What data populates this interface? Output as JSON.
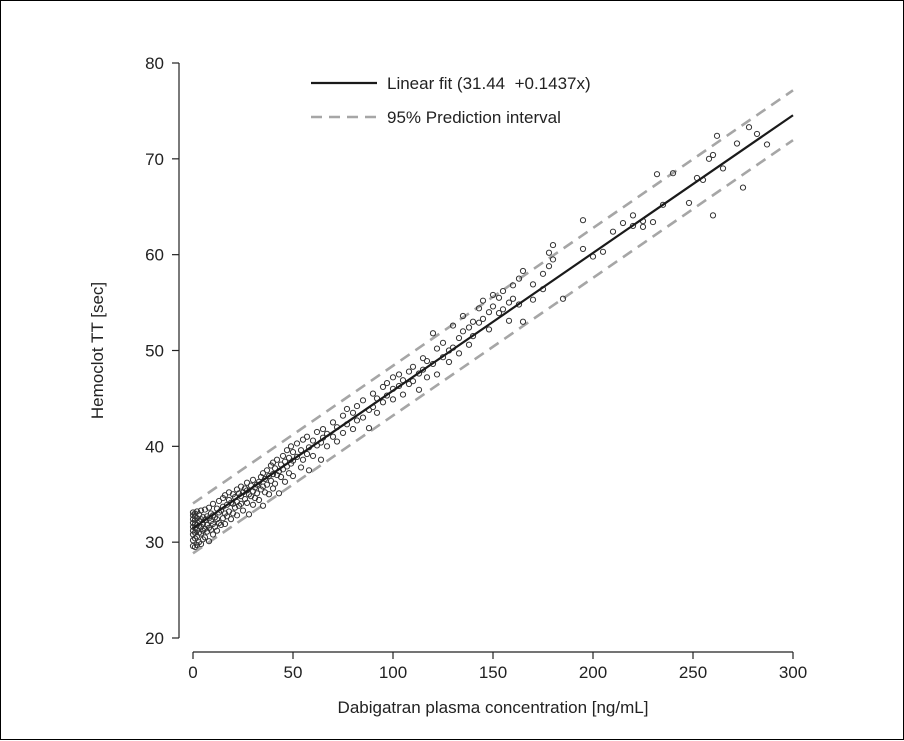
{
  "chart_data": {
    "type": "scatter",
    "xlabel": "Dabigatran plasma concentration [ng/mL]",
    "ylabel": "Hemoclot TT [sec]",
    "xlim": [
      0,
      300
    ],
    "ylim": [
      20,
      80
    ],
    "xticks": [
      0,
      50,
      100,
      150,
      200,
      250,
      300
    ],
    "yticks": [
      20,
      30,
      40,
      50,
      60,
      70,
      80
    ],
    "grid": false,
    "legend_position": "top-center",
    "legend": [
      {
        "label": "Linear fit (31.44  +0.1437x)",
        "style": "solid",
        "color": "#1a1a1a"
      },
      {
        "label": "95% Prediction interval",
        "style": "dashed",
        "color": "#a6a6a6"
      }
    ],
    "fit": {
      "intercept": 31.44,
      "slope": 0.1437
    },
    "prediction_interval_halfwidth": 2.6,
    "series": [
      {
        "marker": "open-circle",
        "color": "#333333",
        "points": [
          [
            0,
            29.6
          ],
          [
            0,
            30.2
          ],
          [
            0,
            30.8
          ],
          [
            0,
            31.2
          ],
          [
            0,
            31.6
          ],
          [
            0,
            32.0
          ],
          [
            0,
            32.4
          ],
          [
            0,
            32.8
          ],
          [
            0,
            33.1
          ],
          [
            1,
            29.5
          ],
          [
            1,
            30.4
          ],
          [
            1,
            31.0
          ],
          [
            1,
            31.5
          ],
          [
            1,
            31.9
          ],
          [
            1,
            32.3
          ],
          [
            1,
            32.7
          ],
          [
            1,
            33.0
          ],
          [
            2,
            29.7
          ],
          [
            2,
            30.6
          ],
          [
            2,
            31.3
          ],
          [
            2,
            31.8
          ],
          [
            2,
            32.5
          ],
          [
            2,
            33.2
          ],
          [
            3,
            30.0
          ],
          [
            3,
            31.0
          ],
          [
            3,
            31.7
          ],
          [
            3,
            32.2
          ],
          [
            3,
            32.9
          ],
          [
            4,
            29.8
          ],
          [
            4,
            30.9
          ],
          [
            4,
            31.6
          ],
          [
            4,
            32.4
          ],
          [
            4,
            33.3
          ],
          [
            5,
            30.3
          ],
          [
            5,
            31.2
          ],
          [
            5,
            31.9
          ],
          [
            5,
            32.6
          ],
          [
            6,
            30.5
          ],
          [
            6,
            31.4
          ],
          [
            6,
            32.3
          ],
          [
            6,
            33.4
          ],
          [
            7,
            31.1
          ],
          [
            7,
            31.8
          ],
          [
            7,
            32.7
          ],
          [
            8,
            30.1
          ],
          [
            8,
            31.5
          ],
          [
            8,
            32.5
          ],
          [
            8,
            33.6
          ],
          [
            9,
            31.3
          ],
          [
            9,
            32.2
          ],
          [
            9,
            33.0
          ],
          [
            10,
            30.8
          ],
          [
            10,
            31.9
          ],
          [
            10,
            32.8
          ],
          [
            10,
            34.0
          ],
          [
            11,
            31.6
          ],
          [
            11,
            32.6
          ],
          [
            12,
            31.2
          ],
          [
            12,
            32.4
          ],
          [
            12,
            33.5
          ],
          [
            13,
            32.0
          ],
          [
            13,
            33.1
          ],
          [
            13,
            34.3
          ],
          [
            14,
            31.8
          ],
          [
            14,
            33.3
          ],
          [
            15,
            32.5
          ],
          [
            15,
            33.7
          ],
          [
            15,
            34.6
          ],
          [
            16,
            31.9
          ],
          [
            16,
            33.0
          ],
          [
            16,
            34.9
          ],
          [
            17,
            32.7
          ],
          [
            17,
            33.9
          ],
          [
            18,
            33.2
          ],
          [
            18,
            34.4
          ],
          [
            18,
            35.2
          ],
          [
            19,
            32.4
          ],
          [
            19,
            34.1
          ],
          [
            20,
            33.0
          ],
          [
            20,
            34.0
          ],
          [
            20,
            35.0
          ],
          [
            21,
            33.6
          ],
          [
            21,
            34.7
          ],
          [
            22,
            32.8
          ],
          [
            22,
            34.2
          ],
          [
            22,
            35.5
          ],
          [
            23,
            33.8
          ],
          [
            23,
            35.1
          ],
          [
            24,
            34.0
          ],
          [
            24,
            34.8
          ],
          [
            24,
            35.8
          ],
          [
            25,
            33.3
          ],
          [
            25,
            35.2
          ],
          [
            26,
            34.5
          ],
          [
            26,
            35.6
          ],
          [
            27,
            34.1
          ],
          [
            27,
            35.4
          ],
          [
            27,
            36.2
          ],
          [
            28,
            32.9
          ],
          [
            28,
            35.0
          ],
          [
            29,
            34.8
          ],
          [
            29,
            35.9
          ],
          [
            30,
            33.9
          ],
          [
            30,
            35.3
          ],
          [
            30,
            36.5
          ],
          [
            31,
            34.6
          ],
          [
            31,
            35.7
          ],
          [
            32,
            35.1
          ],
          [
            32,
            36.0
          ],
          [
            33,
            34.4
          ],
          [
            33,
            36.3
          ],
          [
            34,
            35.5
          ],
          [
            34,
            36.8
          ],
          [
            35,
            33.8
          ],
          [
            35,
            35.8
          ],
          [
            35,
            37.2
          ],
          [
            36,
            35.2
          ],
          [
            36,
            36.6
          ],
          [
            37,
            36.0
          ],
          [
            37,
            37.5
          ],
          [
            38,
            35.0
          ],
          [
            38,
            36.9
          ],
          [
            39,
            36.4
          ],
          [
            39,
            38.0
          ],
          [
            40,
            35.6
          ],
          [
            40,
            37.1
          ],
          [
            40,
            38.3
          ],
          [
            41,
            36.1
          ],
          [
            41,
            37.7
          ],
          [
            42,
            37.0
          ],
          [
            42,
            38.6
          ],
          [
            43,
            35.1
          ],
          [
            43,
            37.4
          ],
          [
            44,
            36.8
          ],
          [
            44,
            38.1
          ],
          [
            45,
            37.6
          ],
          [
            45,
            39.0
          ],
          [
            46,
            36.3
          ],
          [
            46,
            38.4
          ],
          [
            47,
            37.9
          ],
          [
            47,
            39.6
          ],
          [
            48,
            37.2
          ],
          [
            48,
            38.8
          ],
          [
            49,
            38.2
          ],
          [
            49,
            40.0
          ],
          [
            50,
            36.9
          ],
          [
            50,
            38.5
          ],
          [
            50,
            39.4
          ],
          [
            52,
            38.9
          ],
          [
            52,
            40.3
          ],
          [
            54,
            37.8
          ],
          [
            54,
            39.6
          ],
          [
            55,
            38.6
          ],
          [
            55,
            40.7
          ],
          [
            57,
            39.2
          ],
          [
            57,
            41.0
          ],
          [
            58,
            37.5
          ],
          [
            58,
            39.9
          ],
          [
            60,
            39.0
          ],
          [
            60,
            40.6
          ],
          [
            62,
            40.1
          ],
          [
            62,
            41.5
          ],
          [
            64,
            38.6
          ],
          [
            64,
            40.4
          ],
          [
            65,
            40.9
          ],
          [
            65,
            41.8
          ],
          [
            67,
            40.0
          ],
          [
            67,
            41.3
          ],
          [
            70,
            41.0
          ],
          [
            70,
            42.5
          ],
          [
            72,
            40.5
          ],
          [
            72,
            42.0
          ],
          [
            75,
            41.4
          ],
          [
            75,
            43.2
          ],
          [
            77,
            42.3
          ],
          [
            77,
            43.9
          ],
          [
            80,
            41.8
          ],
          [
            80,
            43.5
          ],
          [
            82,
            42.7
          ],
          [
            82,
            44.2
          ],
          [
            85,
            43.0
          ],
          [
            85,
            44.8
          ],
          [
            88,
            41.9
          ],
          [
            88,
            43.8
          ],
          [
            90,
            44.1
          ],
          [
            90,
            45.5
          ],
          [
            92,
            43.5
          ],
          [
            92,
            45.0
          ],
          [
            95,
            44.6
          ],
          [
            95,
            46.2
          ],
          [
            97,
            45.3
          ],
          [
            97,
            46.6
          ],
          [
            100,
            44.9
          ],
          [
            100,
            46.0
          ],
          [
            100,
            47.2
          ],
          [
            103,
            46.3
          ],
          [
            103,
            47.5
          ],
          [
            105,
            45.4
          ],
          [
            105,
            46.9
          ],
          [
            108,
            46.5
          ],
          [
            108,
            47.8
          ],
          [
            110,
            46.8
          ],
          [
            110,
            48.3
          ],
          [
            113,
            45.9
          ],
          [
            113,
            47.6
          ],
          [
            115,
            48.0
          ],
          [
            115,
            49.2
          ],
          [
            117,
            47.2
          ],
          [
            117,
            48.9
          ],
          [
            120,
            48.6
          ],
          [
            120,
            51.8
          ],
          [
            122,
            47.5
          ],
          [
            122,
            50.2
          ],
          [
            125,
            49.3
          ],
          [
            125,
            50.8
          ],
          [
            128,
            48.8
          ],
          [
            128,
            50.0
          ],
          [
            130,
            50.3
          ],
          [
            130,
            52.6
          ],
          [
            133,
            49.7
          ],
          [
            133,
            51.3
          ],
          [
            135,
            52.0
          ],
          [
            135,
            53.6
          ],
          [
            138,
            50.6
          ],
          [
            138,
            52.4
          ],
          [
            140,
            51.5
          ],
          [
            140,
            53.0
          ],
          [
            143,
            52.9
          ],
          [
            143,
            54.4
          ],
          [
            145,
            53.3
          ],
          [
            145,
            55.2
          ],
          [
            148,
            52.2
          ],
          [
            148,
            54.0
          ],
          [
            150,
            54.6
          ],
          [
            150,
            55.8
          ],
          [
            153,
            53.9
          ],
          [
            153,
            55.5
          ],
          [
            155,
            54.3
          ],
          [
            155,
            56.2
          ],
          [
            158,
            53.1
          ],
          [
            158,
            55.0
          ],
          [
            160,
            55.4
          ],
          [
            160,
            56.8
          ],
          [
            163,
            54.8
          ],
          [
            163,
            57.5
          ],
          [
            165,
            53.0
          ],
          [
            165,
            58.3
          ],
          [
            170,
            55.3
          ],
          [
            170,
            56.9
          ],
          [
            175,
            56.4
          ],
          [
            175,
            58.0
          ],
          [
            178,
            58.8
          ],
          [
            178,
            60.2
          ],
          [
            180,
            59.5
          ],
          [
            180,
            61.0
          ],
          [
            185,
            55.4
          ],
          [
            195,
            60.6
          ],
          [
            195,
            63.6
          ],
          [
            200,
            59.8
          ],
          [
            205,
            60.3
          ],
          [
            210,
            62.4
          ],
          [
            215,
            63.3
          ],
          [
            220,
            63.0
          ],
          [
            220,
            64.1
          ],
          [
            225,
            62.9
          ],
          [
            225,
            63.5
          ],
          [
            230,
            63.4
          ],
          [
            232,
            68.4
          ],
          [
            235,
            65.2
          ],
          [
            240,
            68.5
          ],
          [
            248,
            65.4
          ],
          [
            252,
            68.0
          ],
          [
            255,
            67.8
          ],
          [
            258,
            70.0
          ],
          [
            260,
            64.1
          ],
          [
            260,
            70.4
          ],
          [
            262,
            72.4
          ],
          [
            265,
            69.0
          ],
          [
            272,
            71.6
          ],
          [
            275,
            67.0
          ],
          [
            278,
            73.3
          ],
          [
            282,
            72.6
          ],
          [
            287,
            71.5
          ]
        ]
      }
    ]
  }
}
